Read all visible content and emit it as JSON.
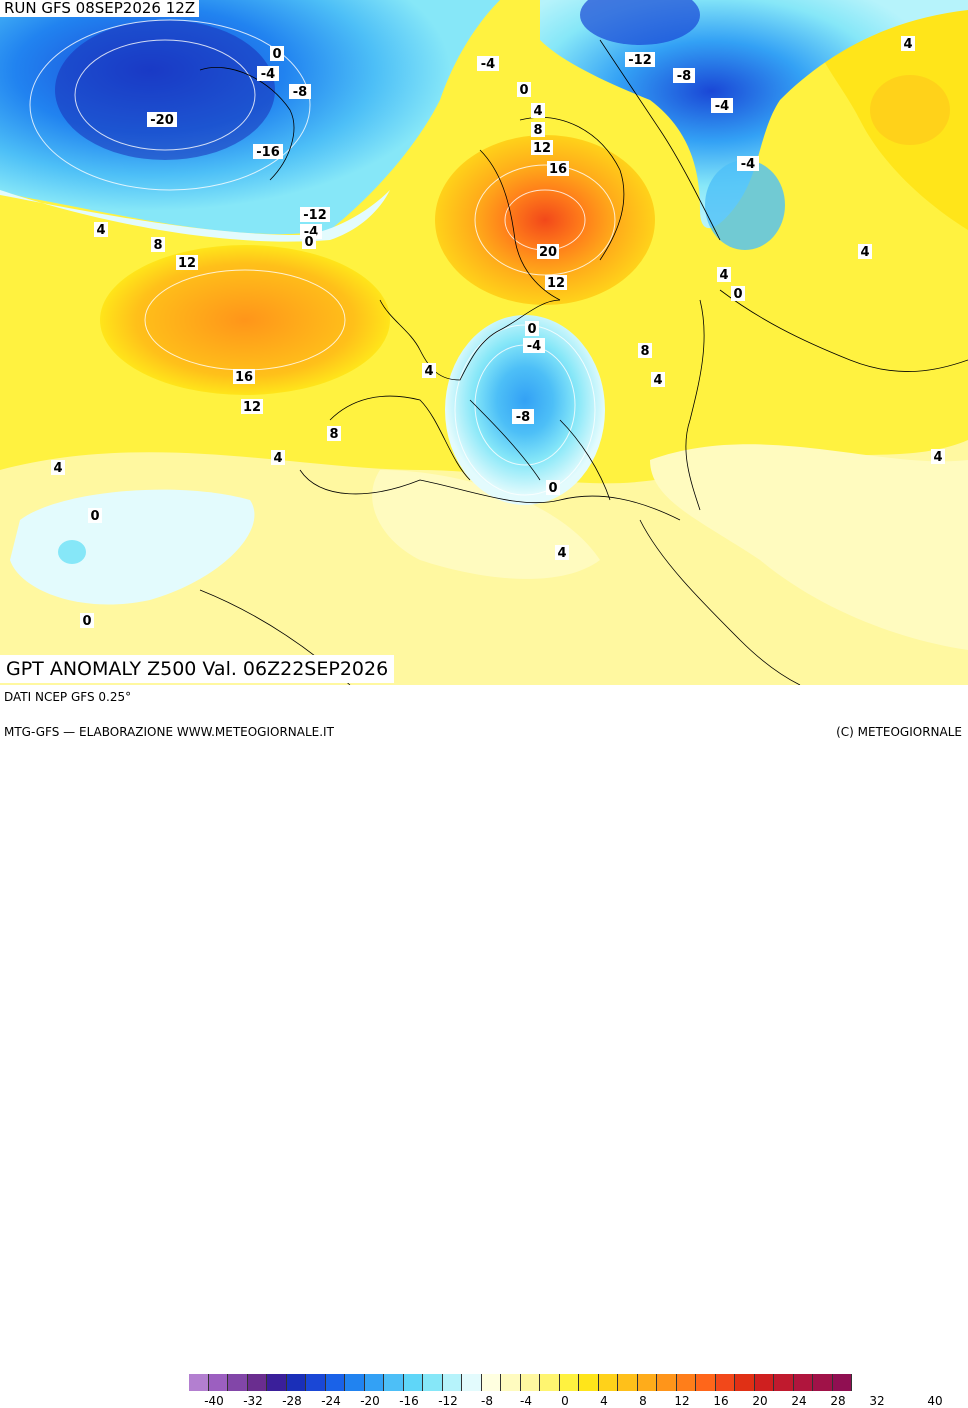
{
  "header": {
    "run_label": "RUN GFS 08SEP2026 12Z"
  },
  "title": "GPT ANOMALY Z500 Val. 06Z22SEP2026",
  "footer": {
    "source": "DATI NCEP GFS 0.25°",
    "credit_left": "MTG-GFS — ELABORAZIONE WWW.METEOGIORNALE.IT",
    "credit_right": "(C) METEOGIORNALE"
  },
  "legend": {
    "ticks": [
      "-40",
      "-32",
      "-28",
      "-24",
      "-20",
      "-16",
      "-12",
      "-8",
      "-4",
      "0",
      "4",
      "8",
      "12",
      "16",
      "20",
      "24",
      "28",
      "32",
      "40"
    ],
    "colors": [
      "#b37fd0",
      "#9c5fc0",
      "#8246a8",
      "#6a2d8f",
      "#3a1f9a",
      "#1a2fb8",
      "#1a47d6",
      "#1a62e8",
      "#2183f0",
      "#33a1f5",
      "#4dbff7",
      "#5fd6f8",
      "#86e7f8",
      "#b6f3fb",
      "#e3fbfd",
      "#ffffe0",
      "#fffbbf",
      "#fff8a0",
      "#fff570",
      "#fff240",
      "#ffe51a",
      "#ffd21a",
      "#ffc01a",
      "#ffac1a",
      "#ff951a",
      "#ff7e1a",
      "#ff661a",
      "#f2481a",
      "#e03015",
      "#cf1f1f",
      "#c01a2e",
      "#b0153d",
      "#a01248",
      "#900f52"
    ]
  },
  "contour_labels": [
    "0",
    "-4",
    "-8",
    "-20",
    "-16",
    "-12",
    "-4",
    "0",
    "-4",
    "0",
    "4",
    "8",
    "12",
    "16",
    "20",
    "-12",
    "-8",
    "-4",
    "-4",
    "4",
    "4",
    "8",
    "12",
    "16",
    "12",
    "8",
    "4",
    "4",
    "0",
    "-4",
    "-8",
    "0",
    "4",
    "8",
    "12",
    "4",
    "0",
    "0",
    "4",
    "4",
    "4",
    "4",
    "0"
  ]
}
